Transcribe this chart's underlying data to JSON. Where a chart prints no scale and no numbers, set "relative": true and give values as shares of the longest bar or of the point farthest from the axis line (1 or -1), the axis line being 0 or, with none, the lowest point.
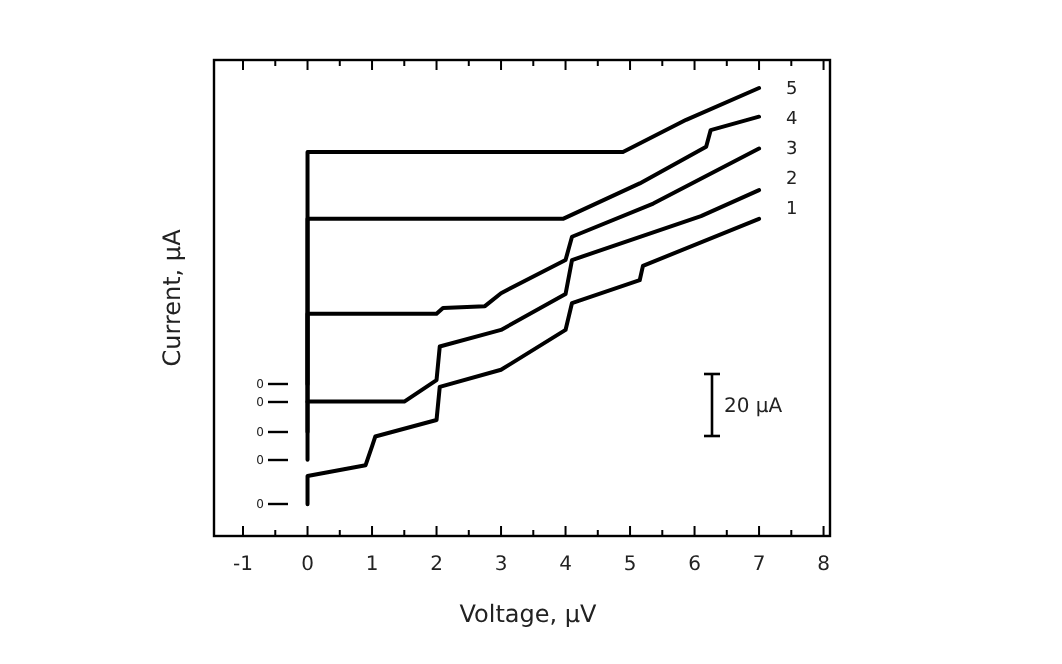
{
  "chart_data": {
    "type": "line",
    "xlabel": "Voltage, μV",
    "ylabel": "Current, μA",
    "relative": true,
    "xlim": [
      -1.45,
      8.1
    ],
    "xticks": [
      -1,
      {
        "value": -0.5,
        "label": null
      },
      0,
      {
        "value": 0.5,
        "label": null
      },
      1,
      {
        "value": 1.5,
        "label": null
      },
      2,
      {
        "value": 2.5,
        "label": null
      },
      3,
      {
        "value": 3.5,
        "label": null
      },
      4,
      {
        "value": 4.5,
        "label": null
      },
      5,
      {
        "value": 5.5,
        "label": null
      },
      6,
      {
        "value": 6.5,
        "label": null
      },
      7,
      {
        "value": 7.5,
        "label": null
      },
      8
    ],
    "marker": "none",
    "line_style": "solid",
    "grid": false,
    "legend": "right",
    "series": [
      {
        "name": "1",
        "color": "#000000",
        "x": [
          0,
          0,
          0.9,
          1.0,
          1.05,
          2.0,
          2.05,
          3.0,
          4.0,
          4.1,
          5.15,
          5.2,
          7.0
        ],
        "values": [
          0.071,
          0.134,
          0.158,
          0.2,
          0.222,
          0.259,
          0.333,
          0.371,
          0.46,
          0.52,
          0.571,
          0.603,
          0.708
        ]
      },
      {
        "name": "2",
        "color": "#000000",
        "x": [
          0,
          0,
          1.5,
          2.0,
          2.05,
          3.0,
          4.0,
          4.1,
          6.1,
          7.0
        ],
        "values": [
          0.17,
          0.3,
          0.3,
          0.348,
          0.423,
          0.46,
          0.54,
          0.616,
          0.714,
          0.772
        ]
      },
      {
        "name": "3",
        "color": "#000000",
        "x": [
          0,
          0,
          2.0,
          2.1,
          2.75,
          3.0,
          4.0,
          4.1,
          5.36,
          7.0
        ],
        "values": [
          0.232,
          0.496,
          0.496,
          0.509,
          0.513,
          0.542,
          0.616,
          0.668,
          0.742,
          0.865
        ]
      },
      {
        "name": "4",
        "color": "#000000",
        "x": [
          0,
          0,
          3.96,
          5.15,
          6.18,
          6.25,
          7.0
        ],
        "values": [
          0.299,
          0.708,
          0.708,
          0.787,
          0.869,
          0.906,
          0.936
        ]
      },
      {
        "name": "5",
        "color": "#000000",
        "x": [
          0,
          0,
          4.89,
          5.87,
          7.0
        ],
        "values": [
          0.339,
          0.857,
          0.857,
          0.929,
          1
        ]
      }
    ],
    "annotations": [
      "0",
      "0",
      "0",
      "0",
      "0",
      "20 μA"
    ]
  }
}
